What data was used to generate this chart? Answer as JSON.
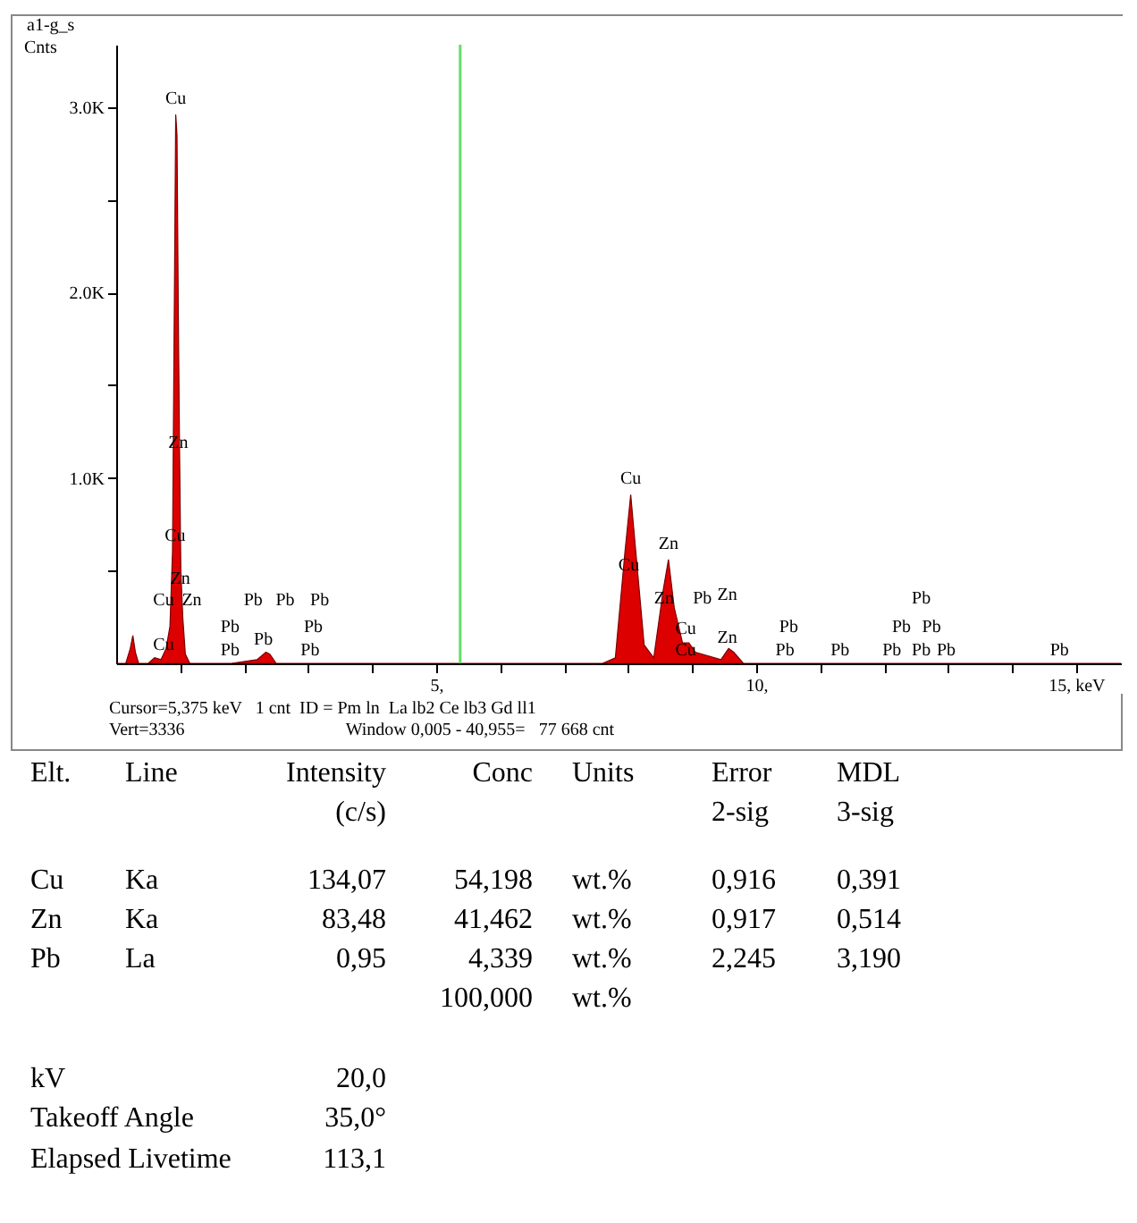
{
  "chart_data": [
    {
      "type": "area",
      "title": "a1-g_s",
      "ylabel": "Cnts",
      "x": [
        0,
        0.15,
        0.22,
        0.26,
        0.3,
        0.35,
        0.5,
        0.6,
        0.7,
        0.78,
        0.84,
        0.88,
        0.91,
        0.93,
        0.95,
        0.97,
        0.99,
        1.01,
        1.04,
        1.08,
        1.15,
        1.3,
        1.8,
        2.2,
        2.34,
        2.4,
        2.5,
        3,
        5,
        7.6,
        7.8,
        7.95,
        8.04,
        8.12,
        8.25,
        8.4,
        8.55,
        8.63,
        8.72,
        8.85,
        8.95,
        9.05,
        9.45,
        9.57,
        9.65,
        9.8,
        10.5,
        12,
        15.7
      ],
      "series": [
        {
          "color": "#dd0000",
          "values": [
            0,
            0,
            80,
            150,
            60,
            0,
            0,
            30,
            20,
            80,
            200,
            600,
            2000,
            2960,
            2850,
            1900,
            1150,
            500,
            250,
            50,
            0,
            0,
            0,
            20,
            60,
            50,
            0,
            0,
            0,
            0,
            30,
            600,
            910,
            600,
            100,
            30,
            400,
            560,
            300,
            110,
            110,
            60,
            20,
            80,
            60,
            0,
            0,
            0,
            0
          ]
        }
      ],
      "xlim": [
        0,
        15.7
      ],
      "xticks": [
        {
          "value": 1,
          "label": null
        },
        {
          "value": 2,
          "label": null
        },
        {
          "value": 3,
          "label": null
        },
        {
          "value": 4,
          "label": null
        },
        {
          "value": 5,
          "label": "5,"
        },
        {
          "value": 6,
          "label": null
        },
        {
          "value": 7,
          "label": null
        },
        {
          "value": 8,
          "label": null
        },
        {
          "value": 9,
          "label": null
        },
        {
          "value": 10,
          "label": "10,"
        },
        {
          "value": 11,
          "label": null
        },
        {
          "value": 12,
          "label": null
        },
        {
          "value": 13,
          "label": null
        },
        {
          "value": 14,
          "label": null
        },
        {
          "value": 15,
          "label": "15, keV"
        }
      ],
      "ylim": [
        0,
        3336
      ],
      "yticks": [
        {
          "value": 500,
          "label": null
        },
        {
          "value": 1000,
          "label": "1.0K"
        },
        {
          "value": 1500,
          "label": null
        },
        {
          "value": 2000,
          "label": "2.0K"
        },
        {
          "value": 2500,
          "label": null
        },
        {
          "value": 3000,
          "label": "3.0K"
        }
      ],
      "ref_lines": [
        {
          "axis": "x",
          "value": 5.375,
          "color": "#66dd66"
        }
      ],
      "annotations": [
        {
          "text": "Cu",
          "x": 0.93,
          "y": 2960
        },
        {
          "text": "Cu",
          "x": 8.04,
          "y": 910
        },
        {
          "text": "Zn",
          "x": 8.63,
          "y": 560
        },
        "Zn",
        "Cu",
        "Zn",
        "Cu",
        "Zn",
        "Cu",
        "Pb",
        "Pb",
        "Pb",
        "Pb",
        "Pb",
        "Pb",
        "Pb",
        "Pb",
        "Cu",
        "Zn",
        "Pb",
        "Zn",
        "Cu",
        "Cu",
        "Zn",
        "Pb",
        "Pb",
        "Pb",
        "Pb",
        "Pb",
        "Pb",
        "Pb",
        "Pb",
        "Pb",
        "Pb",
        "Cursor=5,375 keV   1 cnt  ID = Pm ln  La lb2 Ce lb3 Gd ll1",
        "Vert=3336",
        "Window 0,005 - 40,955=   77 668 cnt"
      ]
    },
    {
      "type": "other",
      "annotations": [
        "Elt.\tLine\tIntensity\tConc\tUnits\tError\tMDL",
        "\t\t(c/s)\t\t\t2-sig\t3-sig",
        "Cu\tKa\t134,07\t54,198\twt.%\t0,916\t0,391",
        "Zn\tKa\t83,48\t41,462\twt.%\t0,917\t0,514",
        "Pb\tLa\t0,95\t4,339\twt.%\t2,245\t3,190",
        "\t\t\t100,000\twt.%",
        "kV\t\t20,0",
        "Takeoff Angle\t\t35,0°",
        "Elapsed Livetime\t\t113,1"
      ]
    }
  ]
}
